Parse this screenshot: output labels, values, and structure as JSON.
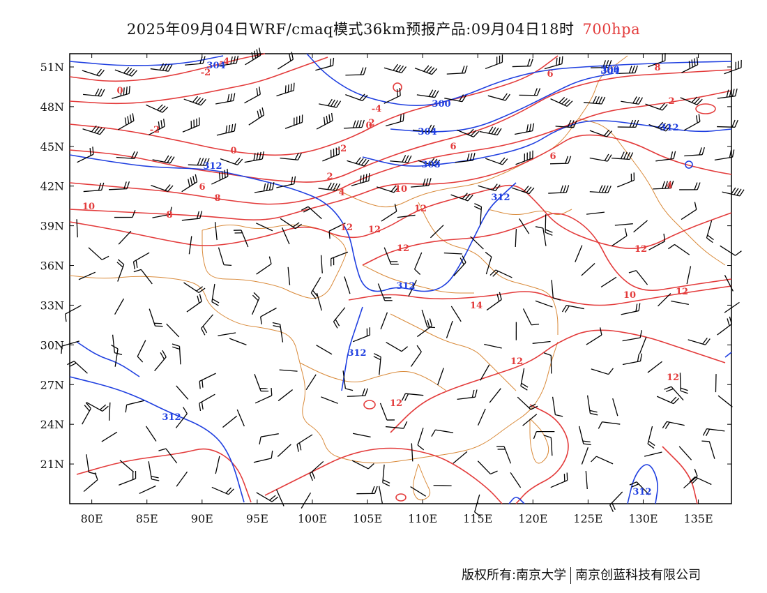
{
  "title": {
    "main": "2025年09月04日WRF/cmaq模式36km预报产品:09月04日18时",
    "level": "700hpa"
  },
  "footer": {
    "copyright": "版权所有:南京大学",
    "company": "南京创蓝科技有限公司"
  },
  "map": {
    "lon_range": [
      78,
      138
    ],
    "lat_range": [
      18,
      52
    ],
    "lon_ticks": [
      "80E",
      "85E",
      "90E",
      "95E",
      "100E",
      "105E",
      "110E",
      "115E",
      "120E",
      "125E",
      "130E",
      "135E"
    ],
    "lat_ticks": [
      "51N",
      "48N",
      "45N",
      "42N",
      "39N",
      "36N",
      "33N",
      "30N",
      "27N",
      "24N",
      "21N"
    ],
    "colors": {
      "temperature": "#e33b3b",
      "height": "#1f3fe0",
      "boundary": "#d98a3a",
      "wind": "#000000"
    },
    "temperature_labels": [
      "-4",
      "-2",
      "0",
      "-2",
      "0",
      "2",
      "-4",
      "-2",
      "2",
      "4",
      "6",
      "6",
      "8",
      "8",
      "10",
      "10",
      "12",
      "12",
      "12",
      "12",
      "14",
      "12",
      "12",
      "12",
      "12",
      "10",
      "12",
      "6",
      "6",
      "8",
      "0",
      "2",
      "4"
    ],
    "height_labels": [
      "304",
      "304",
      "300",
      "300",
      "304",
      "308",
      "312",
      "312",
      "312",
      "312",
      "312",
      "312",
      "312"
    ]
  }
}
